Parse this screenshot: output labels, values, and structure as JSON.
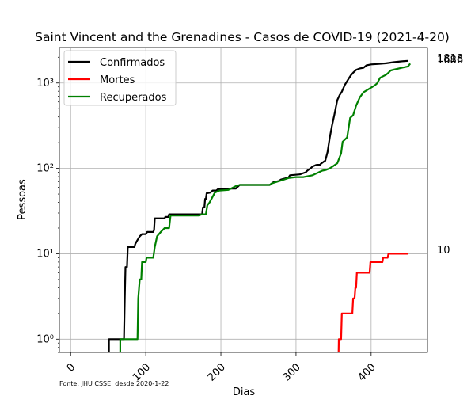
{
  "chart_data": {
    "type": "line",
    "title": "Saint Vincent and the Grenadines - Casos de COVID-19 (2021-4-20)",
    "xlabel": "Dias",
    "ylabel": "Pessoas",
    "yscale": "log",
    "xlim": [
      -15,
      475
    ],
    "ylim": [
      0.7,
      2600
    ],
    "xticks": [
      0,
      100,
      200,
      300,
      400
    ],
    "xtick_labels": [
      "0",
      "100",
      "200",
      "300",
      "400"
    ],
    "yticks": [
      1,
      10,
      100,
      1000
    ],
    "ytick_labels": [
      "10⁰",
      "10¹",
      "10²",
      "10³"
    ],
    "grid": true,
    "legend_position": "top-left",
    "source": "Fonte: JHU CSSE, desde 2020-1-22",
    "series": [
      {
        "name": "Confirmados",
        "color": "#000000",
        "end_label": "1818",
        "points": [
          [
            0,
            0
          ],
          [
            51,
            0
          ],
          [
            51,
            1
          ],
          [
            71,
            1
          ],
          [
            72,
            3
          ],
          [
            73,
            7
          ],
          [
            75,
            7
          ],
          [
            76,
            12
          ],
          [
            85,
            12
          ],
          [
            86,
            13
          ],
          [
            88,
            14
          ],
          [
            90,
            15
          ],
          [
            92,
            16
          ],
          [
            95,
            17
          ],
          [
            100,
            17
          ],
          [
            102,
            18
          ],
          [
            110,
            18
          ],
          [
            111,
            19
          ],
          [
            112,
            26
          ],
          [
            125,
            26
          ],
          [
            126,
            27
          ],
          [
            130,
            27
          ],
          [
            131,
            29
          ],
          [
            145,
            29
          ],
          [
            150,
            29
          ],
          [
            175,
            29
          ],
          [
            176,
            35
          ],
          [
            178,
            35
          ],
          [
            179,
            44
          ],
          [
            180,
            44
          ],
          [
            181,
            51
          ],
          [
            186,
            52
          ],
          [
            189,
            55
          ],
          [
            194,
            55
          ],
          [
            196,
            57
          ],
          [
            209,
            57
          ],
          [
            211,
            58
          ],
          [
            220,
            58
          ],
          [
            225,
            64
          ],
          [
            265,
            64
          ],
          [
            268,
            67
          ],
          [
            270,
            69
          ],
          [
            277,
            71
          ],
          [
            280,
            74
          ],
          [
            290,
            78
          ],
          [
            292,
            83
          ],
          [
            305,
            85
          ],
          [
            313,
            90
          ],
          [
            315,
            94
          ],
          [
            320,
            101
          ],
          [
            322,
            105
          ],
          [
            326,
            109
          ],
          [
            328,
            110
          ],
          [
            332,
            110
          ],
          [
            333,
            113
          ],
          [
            337,
            120
          ],
          [
            339,
            123
          ],
          [
            342,
            156
          ],
          [
            345,
            230
          ],
          [
            348,
            320
          ],
          [
            351,
            420
          ],
          [
            353,
            515
          ],
          [
            355,
            630
          ],
          [
            358,
            720
          ],
          [
            361,
            790
          ],
          [
            365,
            950
          ],
          [
            368,
            1050
          ],
          [
            370,
            1120
          ],
          [
            373,
            1230
          ],
          [
            376,
            1320
          ],
          [
            380,
            1420
          ],
          [
            385,
            1480
          ],
          [
            390,
            1510
          ],
          [
            394,
            1610
          ],
          [
            400,
            1650
          ],
          [
            410,
            1670
          ],
          [
            420,
            1700
          ],
          [
            430,
            1750
          ],
          [
            440,
            1790
          ],
          [
            449,
            1818
          ]
        ]
      },
      {
        "name": "Mortes",
        "color": "#ff0000",
        "end_label": "10",
        "points": [
          [
            356,
            0
          ],
          [
            357,
            1
          ],
          [
            360,
            1
          ],
          [
            361,
            2
          ],
          [
            375,
            2
          ],
          [
            376,
            3
          ],
          [
            378,
            3
          ],
          [
            379,
            4
          ],
          [
            380,
            4
          ],
          [
            381,
            6
          ],
          [
            398,
            6
          ],
          [
            399,
            8
          ],
          [
            415,
            8
          ],
          [
            416,
            9
          ],
          [
            422,
            9
          ],
          [
            423,
            10
          ],
          [
            449,
            10
          ]
        ]
      },
      {
        "name": "Recuperados",
        "color": "#008000",
        "end_label": "1686",
        "points": [
          [
            0,
            0
          ],
          [
            66,
            0
          ],
          [
            66,
            1
          ],
          [
            89,
            1
          ],
          [
            90,
            3
          ],
          [
            92,
            5
          ],
          [
            94,
            5
          ],
          [
            95,
            8
          ],
          [
            100,
            8
          ],
          [
            101,
            9
          ],
          [
            110,
            9
          ],
          [
            112,
            12
          ],
          [
            115,
            16
          ],
          [
            120,
            18
          ],
          [
            125,
            20
          ],
          [
            131,
            20
          ],
          [
            133,
            28
          ],
          [
            170,
            28
          ],
          [
            175,
            29
          ],
          [
            180,
            29
          ],
          [
            182,
            37
          ],
          [
            185,
            40
          ],
          [
            192,
            52
          ],
          [
            198,
            55
          ],
          [
            210,
            56
          ],
          [
            220,
            62
          ],
          [
            225,
            64
          ],
          [
            265,
            64
          ],
          [
            268,
            67
          ],
          [
            280,
            72
          ],
          [
            290,
            77
          ],
          [
            300,
            79
          ],
          [
            310,
            79
          ],
          [
            322,
            83
          ],
          [
            335,
            94
          ],
          [
            340,
            96
          ],
          [
            345,
            100
          ],
          [
            350,
            107
          ],
          [
            355,
            115
          ],
          [
            360,
            150
          ],
          [
            362,
            205
          ],
          [
            368,
            230
          ],
          [
            372,
            390
          ],
          [
            376,
            420
          ],
          [
            380,
            540
          ],
          [
            385,
            680
          ],
          [
            390,
            780
          ],
          [
            398,
            860
          ],
          [
            405,
            940
          ],
          [
            408,
            990
          ],
          [
            412,
            1150
          ],
          [
            420,
            1250
          ],
          [
            423,
            1320
          ],
          [
            426,
            1400
          ],
          [
            430,
            1430
          ],
          [
            442,
            1515
          ],
          [
            449,
            1560
          ],
          [
            452,
            1686
          ]
        ]
      }
    ]
  }
}
